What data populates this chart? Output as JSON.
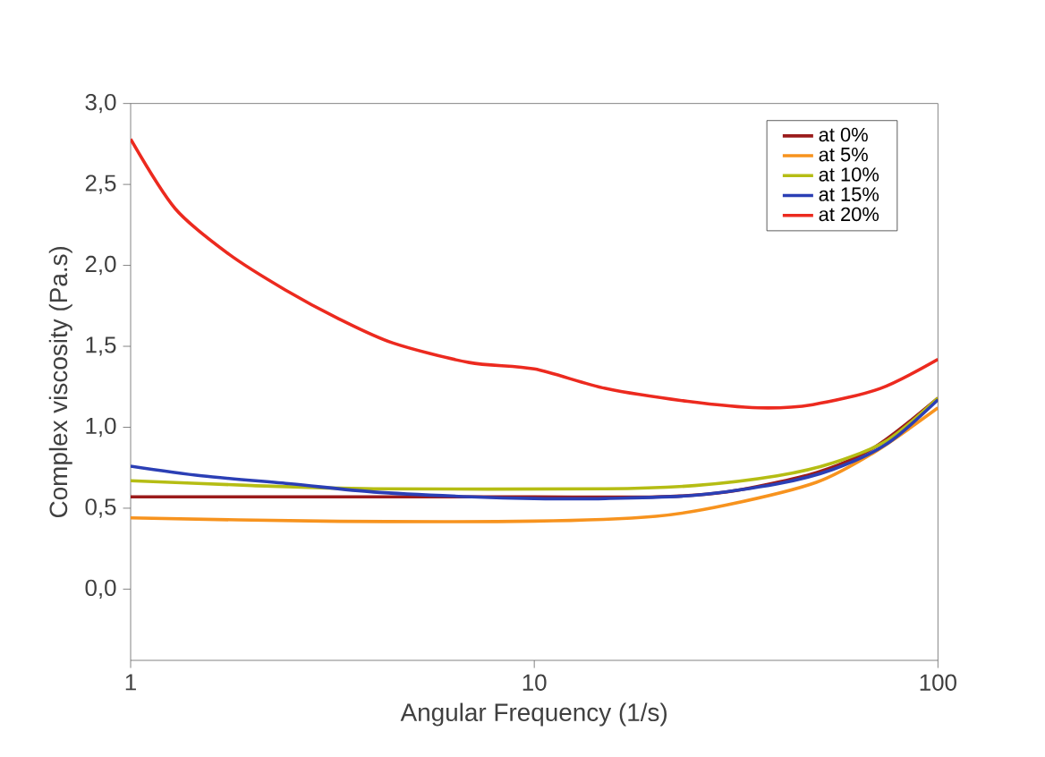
{
  "chart_data": {
    "type": "line",
    "xlabel": "Angular Frequency (1/s)",
    "ylabel": "Complex viscosity (Pa.s)",
    "log": "x",
    "xlim": [
      1,
      100
    ],
    "xticks": [
      1,
      10,
      100
    ],
    "ylim": [
      -0.44,
      3.0
    ],
    "yticks": [
      {
        "value": 0,
        "label": "0,0"
      },
      {
        "value": 0.5,
        "label": "0,5"
      },
      {
        "value": 1,
        "label": "1,0"
      },
      {
        "value": 1.5,
        "label": "1,5"
      },
      {
        "value": 2,
        "label": "2,0"
      },
      {
        "value": 2.5,
        "label": "2,5"
      },
      {
        "value": 3,
        "label": "3,0"
      }
    ],
    "grid": false,
    "legend": "top right",
    "marker": "none",
    "line_style": "solid",
    "series": [
      {
        "name": "at 0%",
        "color": "#9b1b1b",
        "x": [
          1,
          2,
          5,
          10,
          20,
          30,
          50,
          70,
          100
        ],
        "values": [
          0.57,
          0.57,
          0.57,
          0.57,
          0.57,
          0.6,
          0.72,
          0.88,
          1.18
        ]
      },
      {
        "name": "at 5%",
        "color": "#f7931e",
        "x": [
          1,
          3,
          10,
          20,
          30,
          50,
          70,
          100
        ],
        "values": [
          0.44,
          0.42,
          0.42,
          0.45,
          0.52,
          0.66,
          0.85,
          1.12
        ]
      },
      {
        "name": "at  10%",
        "color": "#b5bd14",
        "x": [
          1,
          2,
          4,
          15,
          25,
          40,
          55,
          75,
          100
        ],
        "values": [
          0.67,
          0.64,
          0.62,
          0.62,
          0.64,
          0.7,
          0.78,
          0.92,
          1.18
        ]
      },
      {
        "name": "at  15%",
        "color": "#2b3fb5",
        "x": [
          1,
          1.5,
          2.5,
          4,
          7,
          10,
          15,
          25,
          40,
          55,
          75,
          100
        ],
        "values": [
          0.76,
          0.7,
          0.65,
          0.6,
          0.57,
          0.56,
          0.56,
          0.58,
          0.65,
          0.74,
          0.9,
          1.17
        ]
      },
      {
        "name": "at  20%",
        "color": "#ec2a1f",
        "x": [
          1,
          1.29,
          1.75,
          2.41,
          3.28,
          4.47,
          6.9,
          10,
          15,
          24,
          36,
          49,
          72,
          100
        ],
        "values": [
          2.78,
          2.35,
          2.07,
          1.85,
          1.67,
          1.52,
          1.4,
          1.36,
          1.24,
          1.16,
          1.12,
          1.14,
          1.24,
          1.42
        ]
      }
    ]
  }
}
